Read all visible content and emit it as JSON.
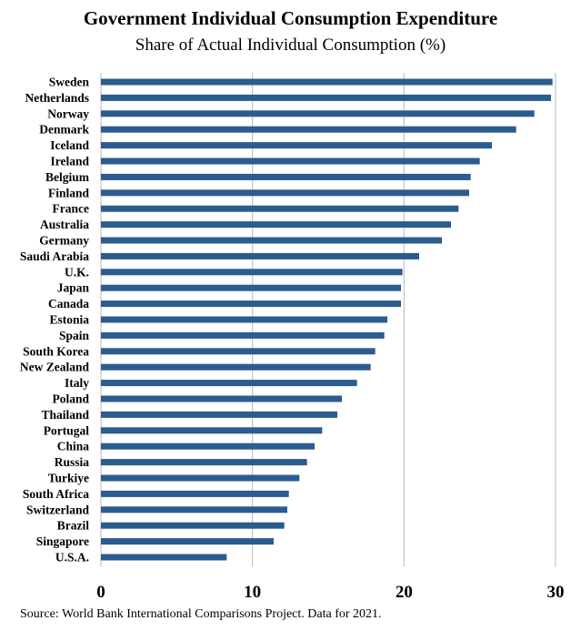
{
  "chart_data": {
    "type": "bar",
    "orientation": "horizontal",
    "title": "Government Individual Consumption Expenditure",
    "subtitle": "Share of Actual Individual Consumption (%)",
    "source": "Source: World Bank International Comparisons Project. Data for 2021.",
    "categories": [
      "Sweden",
      "Netherlands",
      "Norway",
      "Denmark",
      "Iceland",
      "Ireland",
      "Belgium",
      "Finland",
      "France",
      "Australia",
      "Germany",
      "Saudi Arabia",
      "U.K.",
      "Japan",
      "Canada",
      "Estonia",
      "Spain",
      "South Korea",
      "New Zealand",
      "Italy",
      "Poland",
      "Thailand",
      "Portugal",
      "China",
      "Russia",
      "Turkiye",
      "South Africa",
      "Switzerland",
      "Brazil",
      "Singapore",
      "U.S.A."
    ],
    "values": [
      29.8,
      29.7,
      28.6,
      27.4,
      25.8,
      25.0,
      24.4,
      24.3,
      23.6,
      23.1,
      22.5,
      21.0,
      19.9,
      19.8,
      19.8,
      18.9,
      18.7,
      18.1,
      17.8,
      16.9,
      15.9,
      15.6,
      14.6,
      14.1,
      13.6,
      13.1,
      12.4,
      12.3,
      12.1,
      11.4,
      8.3
    ],
    "xlim": [
      0,
      30
    ],
    "xticks": [
      "0",
      "10",
      "20",
      "30"
    ],
    "grid": "vertical",
    "bar_color": "#2b5c8f"
  }
}
